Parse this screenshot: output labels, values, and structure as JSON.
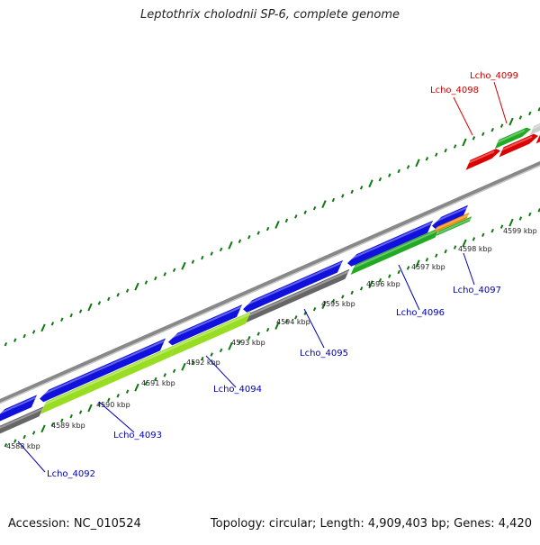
{
  "title": "Leptothrix cholodnii SP-6, complete genome",
  "footer": {
    "accession": "Accession: NC_010524",
    "summary": "Topology: circular; Length: 4,909,403 bp; Genes: 4,420"
  },
  "colors": {
    "cds_blue": "#1111dd",
    "gene_gray": "#666666",
    "gene_lightgreen": "#99dd22",
    "gene_green": "#22aa22",
    "gene_orange": "#ee8800",
    "gene_red": "#dd0000",
    "gene_lightgray": "#cccccc",
    "backbone": "#888888",
    "tick_green": "#117711",
    "label_blue": "#0000bb",
    "label_red": "#cc0000"
  },
  "kbp_labels": [
    "4588 kbp",
    "4589 kbp",
    "4590 kbp",
    "4591 kbp",
    "4592 kbp",
    "4593 kbp",
    "4594 kbp",
    "4595 kbp",
    "4596 kbp",
    "4597 kbp",
    "4598 kbp",
    "4599 kbp"
  ],
  "gene_labels_reverse": [
    "Lcho_4092",
    "Lcho_4093",
    "Lcho_4094",
    "Lcho_4095",
    "Lcho_4096",
    "Lcho_4097"
  ],
  "gene_labels_forward": [
    "Lcho_4098",
    "Lcho_4099"
  ]
}
